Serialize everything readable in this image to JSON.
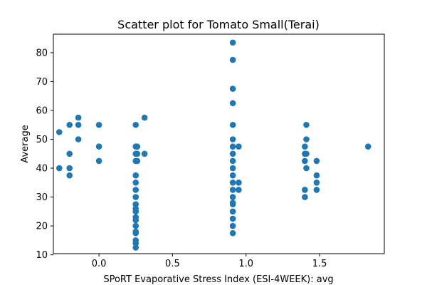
{
  "chart_data": {
    "type": "scatter",
    "title": "Scatter plot for Tomato Small(Terai)",
    "xlabel": "SPoRT Evaporative Stress Index (ESI-4WEEK): avg",
    "ylabel": "Average",
    "xlim": [
      -0.31,
      1.94
    ],
    "ylim": [
      10.4,
      86.4
    ],
    "xticks": [
      0.0,
      0.5,
      1.0,
      1.5
    ],
    "xtick_labels": [
      "0.0",
      "0.5",
      "1.0",
      "1.5"
    ],
    "yticks": [
      10,
      20,
      30,
      40,
      50,
      60,
      70,
      80
    ],
    "ytick_labels": [
      "10",
      "20",
      "30",
      "40",
      "50",
      "60",
      "70",
      "80"
    ],
    "grid": false,
    "marker_color": "#1f77b4",
    "series": [
      {
        "points": [
          [
            -0.27,
            52.5
          ],
          [
            -0.27,
            40.0
          ],
          [
            -0.2,
            55.0
          ],
          [
            -0.2,
            45.0
          ],
          [
            -0.2,
            40.0
          ],
          [
            -0.2,
            37.5
          ],
          [
            -0.14,
            57.5
          ],
          [
            -0.14,
            55.0
          ],
          [
            -0.14,
            50.0
          ],
          [
            0.0,
            55.0
          ],
          [
            0.0,
            47.5
          ],
          [
            0.0,
            42.5
          ],
          [
            0.25,
            55.0
          ],
          [
            0.25,
            47.5
          ],
          [
            0.25,
            45.0
          ],
          [
            0.25,
            42.5
          ],
          [
            0.25,
            37.5
          ],
          [
            0.25,
            35.0
          ],
          [
            0.25,
            32.5
          ],
          [
            0.25,
            30.0
          ],
          [
            0.25,
            27.5
          ],
          [
            0.25,
            26.0
          ],
          [
            0.25,
            25.0
          ],
          [
            0.25,
            23.0
          ],
          [
            0.25,
            22.0
          ],
          [
            0.25,
            20.0
          ],
          [
            0.25,
            18.0
          ],
          [
            0.25,
            17.5
          ],
          [
            0.25,
            15.0
          ],
          [
            0.25,
            14.0
          ],
          [
            0.25,
            12.5
          ],
          [
            0.26,
            47.5
          ],
          [
            0.26,
            45.0
          ],
          [
            0.26,
            42.5
          ],
          [
            0.31,
            57.5
          ],
          [
            0.31,
            45.0
          ],
          [
            0.91,
            83.5
          ],
          [
            0.91,
            77.5
          ],
          [
            0.91,
            67.5
          ],
          [
            0.91,
            62.5
          ],
          [
            0.91,
            55.0
          ],
          [
            0.91,
            50.0
          ],
          [
            0.91,
            47.5
          ],
          [
            0.91,
            45.0
          ],
          [
            0.91,
            42.5
          ],
          [
            0.91,
            40.0
          ],
          [
            0.91,
            37.5
          ],
          [
            0.91,
            35.0
          ],
          [
            0.91,
            32.5
          ],
          [
            0.91,
            30.0
          ],
          [
            0.91,
            28.0
          ],
          [
            0.91,
            27.5
          ],
          [
            0.91,
            25.0
          ],
          [
            0.91,
            22.5
          ],
          [
            0.91,
            20.0
          ],
          [
            0.91,
            17.5
          ],
          [
            0.95,
            47.5
          ],
          [
            0.95,
            35.0
          ],
          [
            0.95,
            32.5
          ],
          [
            1.4,
            47.5
          ],
          [
            1.4,
            45.0
          ],
          [
            1.4,
            42.5
          ],
          [
            1.4,
            32.5
          ],
          [
            1.4,
            30.0
          ],
          [
            1.41,
            55.0
          ],
          [
            1.41,
            50.0
          ],
          [
            1.41,
            45.0
          ],
          [
            1.41,
            40.0
          ],
          [
            1.48,
            42.5
          ],
          [
            1.48,
            37.5
          ],
          [
            1.48,
            35.0
          ],
          [
            1.48,
            32.5
          ],
          [
            1.83,
            47.5
          ]
        ]
      }
    ]
  }
}
